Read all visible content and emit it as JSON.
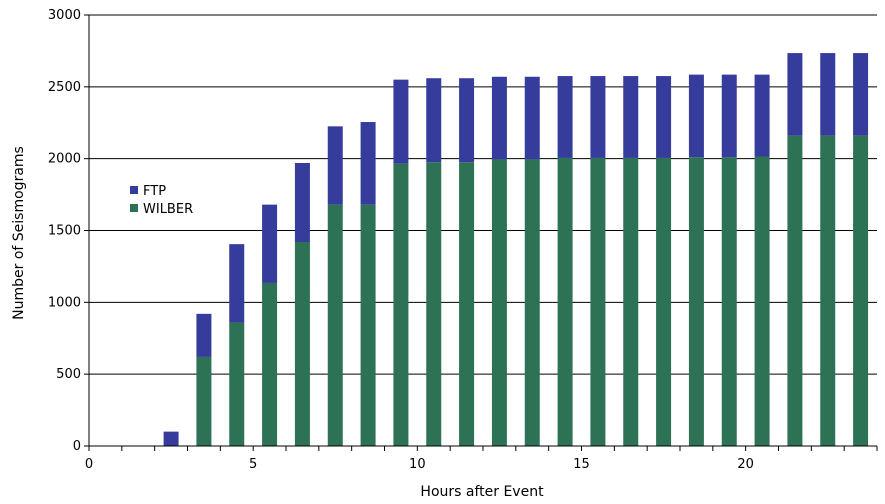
{
  "chart_data": {
    "type": "bar",
    "stacked": true,
    "title": "",
    "xlabel": "Hours after Event",
    "ylabel": "Number of Seismograms",
    "xlim": [
      0,
      24
    ],
    "ylim": [
      0,
      3000
    ],
    "x_ticks": [
      0,
      5,
      10,
      15,
      20
    ],
    "y_ticks": [
      0,
      500,
      1000,
      1500,
      2000,
      2500,
      3000
    ],
    "grid": "horizontal",
    "legend_position": "left-middle",
    "x": [
      2.5,
      3.5,
      4.5,
      5.5,
      6.5,
      7.5,
      8.5,
      9.5,
      10.5,
      11.5,
      12.5,
      13.5,
      14.5,
      15.5,
      16.5,
      17.5,
      18.5,
      19.5,
      20.5,
      21.5,
      22.5,
      23.5
    ],
    "series": [
      {
        "name": "WILBER",
        "color": "#2e7255",
        "values": [
          0,
          620,
          860,
          1135,
          1420,
          1680,
          1680,
          1965,
          1975,
          1975,
          1995,
          1995,
          2005,
          2005,
          2005,
          2005,
          2010,
          2010,
          2015,
          2160,
          2160,
          2160
        ]
      },
      {
        "name": "FTP",
        "color": "#363c9c",
        "values": [
          100,
          300,
          545,
          545,
          550,
          545,
          575,
          585,
          585,
          585,
          575,
          575,
          570,
          570,
          570,
          570,
          575,
          575,
          570,
          575,
          575,
          575
        ]
      }
    ],
    "legend_order": [
      "FTP",
      "WILBER"
    ]
  }
}
